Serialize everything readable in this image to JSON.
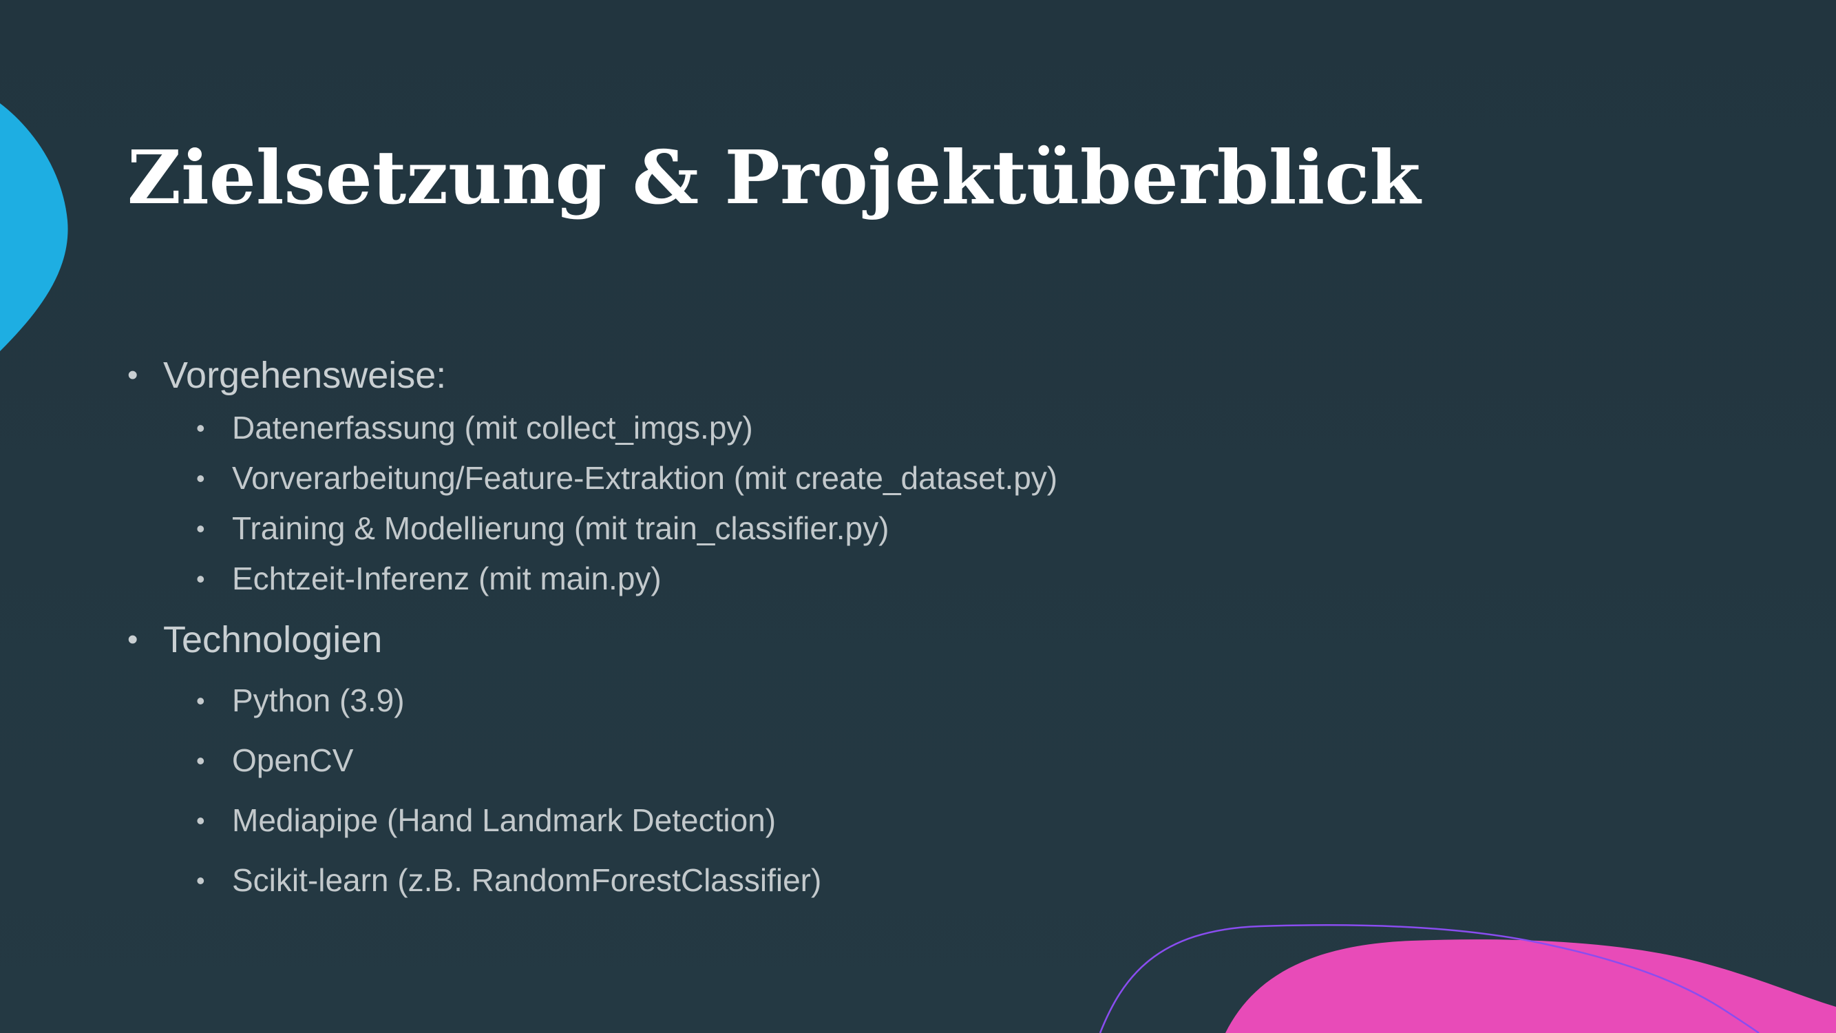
{
  "slide": {
    "title": "Zielsetzung & Projektüberblick",
    "sections": [
      {
        "heading": "Vorgehensweise:",
        "items": [
          "Datenerfassung (mit collect_imgs.py)",
          "Vorverarbeitung/Feature-Extraktion (mit create_dataset.py)",
          "Training & Modellierung (mit train_classifier.py)",
          "Echtzeit-Inferenz (mit main.py)"
        ]
      },
      {
        "heading": "Technologien",
        "items": [
          "Python (3.9)",
          "OpenCV",
          "Mediapipe (Hand Landmark Detection)",
          "Scikit-learn (z.B. RandomForestClassifier)"
        ]
      }
    ]
  },
  "colors": {
    "background": "#233640",
    "accent_blue": "#1eaee2",
    "accent_pink": "#e84bb8",
    "accent_purple_line": "#8a4df0",
    "title_text": "#ffffff",
    "body_text": "#c9cfd2"
  }
}
